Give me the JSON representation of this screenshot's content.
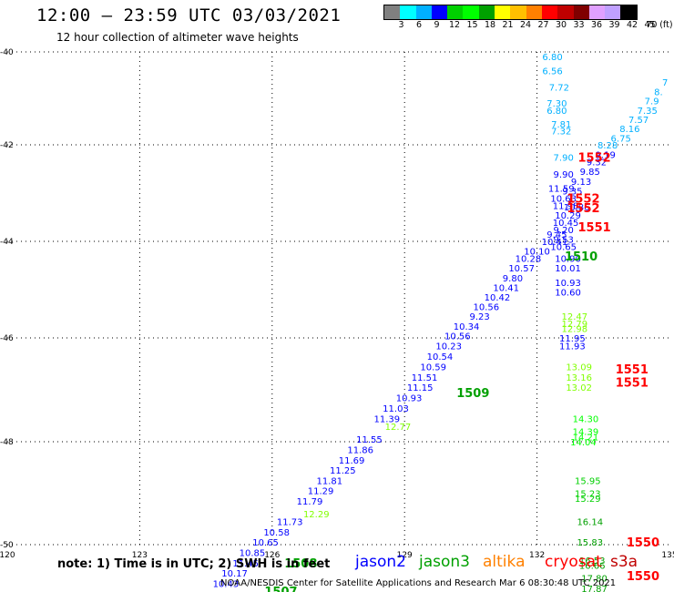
{
  "header": {
    "title": "12:00 – 23:59 UTC 03/03/2021",
    "subtitle": "12 hour collection of altimeter wave heights"
  },
  "legend": {
    "unit_label": "(ft)",
    "colors": [
      "#808080",
      "#00ffff",
      "#00b0ff",
      "#0000ff",
      "#00d000",
      "#00ff00",
      "#00a000",
      "#ffff00",
      "#ffc000",
      "#ff8000",
      "#ff0000",
      "#c00000",
      "#800000",
      "#e0a0ff",
      "#c0a0ff",
      "#000000"
    ],
    "labels": [
      "3",
      "6",
      "9",
      "12",
      "15",
      "18",
      "21",
      "24",
      "27",
      "30",
      "33",
      "36",
      "39",
      "42",
      "45",
      "70"
    ]
  },
  "footer": {
    "note": "note:  1) Time is in UTC;  2) SWH is in feet",
    "credit": "NOAA/NESDIS Center for Satellite Applications and Research    Mar  6 08:30:48 UTC 2021"
  },
  "satellites": [
    {
      "name": "jason2",
      "color": "#0000ff"
    },
    {
      "name": "jason3",
      "color": "#00a000"
    },
    {
      "name": "altika",
      "color": "#ff8000"
    },
    {
      "name": "cryosat",
      "color": "#ff0000"
    },
    {
      "name": "s3a",
      "color": "#c00000"
    }
  ],
  "chart_data": {
    "type": "scatter",
    "xlim": [
      120,
      135
    ],
    "ylim": [
      -50,
      -40
    ],
    "x_ticks": [
      "120",
      "123",
      "126",
      "129",
      "132",
      "135"
    ],
    "y_ticks": [
      "-40",
      "-42",
      "-44",
      "-46",
      "-48",
      "-50"
    ],
    "grid": true,
    "labels": [
      {
        "x": 134.9,
        "y": -40.65,
        "text": "7",
        "color": "#00b0ff"
      },
      {
        "x": 134.75,
        "y": -40.85,
        "text": "8.",
        "color": "#00b0ff"
      },
      {
        "x": 134.6,
        "y": -41.05,
        "text": "7.9",
        "color": "#00b0ff"
      },
      {
        "x": 134.5,
        "y": -41.25,
        "text": "7.35",
        "color": "#00b0ff"
      },
      {
        "x": 134.3,
        "y": -41.45,
        "text": "7.57",
        "color": "#00b0ff"
      },
      {
        "x": 134.1,
        "y": -41.65,
        "text": "8.16",
        "color": "#00b0ff"
      },
      {
        "x": 133.9,
        "y": -41.85,
        "text": "6.75",
        "color": "#00b0ff"
      },
      {
        "x": 133.6,
        "y": -42.0,
        "text": "8.28",
        "color": "#00b0ff"
      },
      {
        "x": 132.35,
        "y": -40.1,
        "text": "6.80",
        "color": "#00b0ff"
      },
      {
        "x": 132.35,
        "y": -40.4,
        "text": "6.56",
        "color": "#00b0ff"
      },
      {
        "x": 132.5,
        "y": -40.75,
        "text": "7.72",
        "color": "#00b0ff"
      },
      {
        "x": 132.45,
        "y": -41.1,
        "text": "7.30",
        "color": "#00b0ff"
      },
      {
        "x": 132.45,
        "y": -41.25,
        "text": "6.80",
        "color": "#00b0ff"
      },
      {
        "x": 132.55,
        "y": -41.55,
        "text": "7.81",
        "color": "#00b0ff"
      },
      {
        "x": 132.55,
        "y": -41.7,
        "text": "7.32",
        "color": "#00b0ff"
      },
      {
        "x": 132.6,
        "y": -42.25,
        "text": "7.90",
        "color": "#00b0ff"
      },
      {
        "x": 133.55,
        "y": -42.2,
        "text": "9.19",
        "color": "#0000ff"
      },
      {
        "x": 133.35,
        "y": -42.35,
        "text": "9.32",
        "color": "#0000ff"
      },
      {
        "x": 133.2,
        "y": -42.55,
        "text": "9.85",
        "color": "#0000ff"
      },
      {
        "x": 133.0,
        "y": -42.75,
        "text": "9.13",
        "color": "#0000ff"
      },
      {
        "x": 132.6,
        "y": -42.6,
        "text": "9.90",
        "color": "#0000ff"
      },
      {
        "x": 132.8,
        "y": -42.95,
        "text": "9.35",
        "color": "#0000ff"
      },
      {
        "x": 132.6,
        "y": -43.1,
        "text": "10.63",
        "color": "#0000ff"
      },
      {
        "x": 132.55,
        "y": -42.9,
        "text": "11.59",
        "color": "#0000ff"
      },
      {
        "x": 132.65,
        "y": -43.25,
        "text": "11.98",
        "color": "#0000ff"
      },
      {
        "x": 132.9,
        "y": -43.28,
        "text": "10.86",
        "color": "#0000ff"
      },
      {
        "x": 132.7,
        "y": -43.45,
        "text": "10.29",
        "color": "#0000ff"
      },
      {
        "x": 132.65,
        "y": -43.6,
        "text": "10.45",
        "color": "#0000ff"
      },
      {
        "x": 132.6,
        "y": -43.75,
        "text": "9.20",
        "color": "#0000ff"
      },
      {
        "x": 132.45,
        "y": -43.85,
        "text": "9.45",
        "color": "#0000ff"
      },
      {
        "x": 132.6,
        "y": -43.95,
        "text": "9.53",
        "color": "#0000ff"
      },
      {
        "x": 132.4,
        "y": -44.0,
        "text": "10.41",
        "color": "#0000ff"
      },
      {
        "x": 132.6,
        "y": -44.1,
        "text": "10.65",
        "color": "#0000ff"
      },
      {
        "x": 132.0,
        "y": -44.2,
        "text": "10.10",
        "color": "#0000ff"
      },
      {
        "x": 132.7,
        "y": -44.35,
        "text": "10.90",
        "color": "#0000ff"
      },
      {
        "x": 131.8,
        "y": -44.35,
        "text": "10.28",
        "color": "#0000ff"
      },
      {
        "x": 132.7,
        "y": -44.55,
        "text": "10.01",
        "color": "#0000ff"
      },
      {
        "x": 131.65,
        "y": -44.55,
        "text": "10.57",
        "color": "#0000ff"
      },
      {
        "x": 131.45,
        "y": -44.75,
        "text": "9.80",
        "color": "#0000ff"
      },
      {
        "x": 131.3,
        "y": -44.95,
        "text": "10.41",
        "color": "#0000ff"
      },
      {
        "x": 132.7,
        "y": -44.85,
        "text": "10.93",
        "color": "#0000ff"
      },
      {
        "x": 132.7,
        "y": -45.05,
        "text": "10.60",
        "color": "#0000ff"
      },
      {
        "x": 131.1,
        "y": -45.15,
        "text": "10.42",
        "color": "#0000ff"
      },
      {
        "x": 130.85,
        "y": -45.35,
        "text": "10.56",
        "color": "#0000ff"
      },
      {
        "x": 130.7,
        "y": -45.55,
        "text": "9.23",
        "color": "#0000ff"
      },
      {
        "x": 130.4,
        "y": -45.75,
        "text": "10.34",
        "color": "#0000ff"
      },
      {
        "x": 130.2,
        "y": -45.95,
        "text": "10.56",
        "color": "#0000ff"
      },
      {
        "x": 130.0,
        "y": -46.15,
        "text": "10.23",
        "color": "#0000ff"
      },
      {
        "x": 129.8,
        "y": -46.35,
        "text": "10.54",
        "color": "#0000ff"
      },
      {
        "x": 129.65,
        "y": -46.55,
        "text": "10.59",
        "color": "#0000ff"
      },
      {
        "x": 129.45,
        "y": -46.75,
        "text": "11.51",
        "color": "#0000ff"
      },
      {
        "x": 129.35,
        "y": -46.95,
        "text": "11.15",
        "color": "#0000ff"
      },
      {
        "x": 129.1,
        "y": -47.15,
        "text": "10.93",
        "color": "#0000ff"
      },
      {
        "x": 128.8,
        "y": -47.35,
        "text": "11.03",
        "color": "#0000ff"
      },
      {
        "x": 128.6,
        "y": -47.55,
        "text": "11.39",
        "color": "#0000ff"
      },
      {
        "x": 128.2,
        "y": -47.95,
        "text": "11.55",
        "color": "#0000ff"
      },
      {
        "x": 128.0,
        "y": -48.15,
        "text": "11.86",
        "color": "#0000ff"
      },
      {
        "x": 127.8,
        "y": -48.35,
        "text": "11.69",
        "color": "#0000ff"
      },
      {
        "x": 127.6,
        "y": -48.55,
        "text": "11.25",
        "color": "#0000ff"
      },
      {
        "x": 127.3,
        "y": -48.75,
        "text": "11.81",
        "color": "#0000ff"
      },
      {
        "x": 127.1,
        "y": -48.95,
        "text": "11.29",
        "color": "#0000ff"
      },
      {
        "x": 126.85,
        "y": -49.15,
        "text": "11.79",
        "color": "#0000ff"
      },
      {
        "x": 126.4,
        "y": -49.55,
        "text": "11.73",
        "color": "#0000ff"
      },
      {
        "x": 126.1,
        "y": -49.75,
        "text": "10.58",
        "color": "#0000ff"
      },
      {
        "x": 125.85,
        "y": -49.95,
        "text": "10.65",
        "color": "#0000ff"
      },
      {
        "x": 125.55,
        "y": -50.15,
        "text": "10.85",
        "color": "#0000ff"
      },
      {
        "x": 125.4,
        "y": -50.35,
        "text": "11.45",
        "color": "#0000ff"
      },
      {
        "x": 125.15,
        "y": -50.55,
        "text": "10.17",
        "color": "#0000ff"
      },
      {
        "x": 124.95,
        "y": -50.75,
        "text": "10.43",
        "color": "#0000ff"
      },
      {
        "x": 132.8,
        "y": -46.0,
        "text": "11.95",
        "color": "#0000ff"
      },
      {
        "x": 132.8,
        "y": -46.15,
        "text": "11.93",
        "color": "#0000ff"
      },
      {
        "x": 132.85,
        "y": -45.55,
        "text": "12.47",
        "color": "#80ff00"
      },
      {
        "x": 132.85,
        "y": -45.7,
        "text": "12.79",
        "color": "#80ff00"
      },
      {
        "x": 132.85,
        "y": -45.8,
        "text": "12.98",
        "color": "#80ff00"
      },
      {
        "x": 132.95,
        "y": -46.55,
        "text": "13.09",
        "color": "#80ff00"
      },
      {
        "x": 132.95,
        "y": -46.75,
        "text": "13.16",
        "color": "#80ff00"
      },
      {
        "x": 132.95,
        "y": -46.95,
        "text": "13.02",
        "color": "#80ff00"
      },
      {
        "x": 128.85,
        "y": -47.7,
        "text": "12.77",
        "color": "#80ff00"
      },
      {
        "x": 127.0,
        "y": -49.4,
        "text": "12.29",
        "color": "#80ff00"
      },
      {
        "x": 133.1,
        "y": -47.55,
        "text": "14.30",
        "color": "#00ff00"
      },
      {
        "x": 133.1,
        "y": -47.8,
        "text": "14.39",
        "color": "#00ff00"
      },
      {
        "x": 133.1,
        "y": -47.9,
        "text": "14.21",
        "color": "#00ff00"
      },
      {
        "x": 133.05,
        "y": -48.0,
        "text": "14.04",
        "color": "#00ff00"
      },
      {
        "x": 133.15,
        "y": -48.75,
        "text": "15.95",
        "color": "#00d000"
      },
      {
        "x": 133.15,
        "y": -49.0,
        "text": "15.23",
        "color": "#00d000"
      },
      {
        "x": 133.15,
        "y": -49.1,
        "text": "15.29",
        "color": "#00d000"
      },
      {
        "x": 133.2,
        "y": -49.55,
        "text": "16.14",
        "color": "#00a000"
      },
      {
        "x": 133.2,
        "y": -49.95,
        "text": "15.83",
        "color": "#00a000"
      },
      {
        "x": 133.25,
        "y": -50.3,
        "text": "16.53",
        "color": "#00a000"
      },
      {
        "x": 133.25,
        "y": -50.4,
        "text": "16.66",
        "color": "#00a000"
      },
      {
        "x": 133.3,
        "y": -50.65,
        "text": "17.80",
        "color": "#00a000"
      },
      {
        "x": 133.3,
        "y": -50.85,
        "text": "17.87",
        "color": "#00a000"
      }
    ],
    "passes": [
      {
        "x": 133.3,
        "y": -42.25,
        "text": "1552",
        "color": "#ff0000"
      },
      {
        "x": 133.05,
        "y": -43.1,
        "text": "1552",
        "color": "#ff0000"
      },
      {
        "x": 133.05,
        "y": -43.3,
        "text": "1552",
        "color": "#ff0000"
      },
      {
        "x": 133.3,
        "y": -43.7,
        "text": "1551",
        "color": "#ff0000"
      },
      {
        "x": 134.15,
        "y": -46.6,
        "text": "1551",
        "color": "#ff0000"
      },
      {
        "x": 134.15,
        "y": -46.85,
        "text": "1551",
        "color": "#ff0000"
      },
      {
        "x": 134.4,
        "y": -49.95,
        "text": "1550",
        "color": "#ff0000"
      },
      {
        "x": 134.4,
        "y": -50.6,
        "text": "1550",
        "color": "#ff0000"
      },
      {
        "x": 133.0,
        "y": -44.3,
        "text": "1510",
        "color": "#00a000"
      },
      {
        "x": 130.55,
        "y": -47.05,
        "text": "1509",
        "color": "#00a000"
      },
      {
        "x": 126.65,
        "y": -50.35,
        "text": "1508",
        "color": "#00a000"
      },
      {
        "x": 126.2,
        "y": -50.9,
        "text": "1507",
        "color": "#00a000"
      }
    ]
  }
}
